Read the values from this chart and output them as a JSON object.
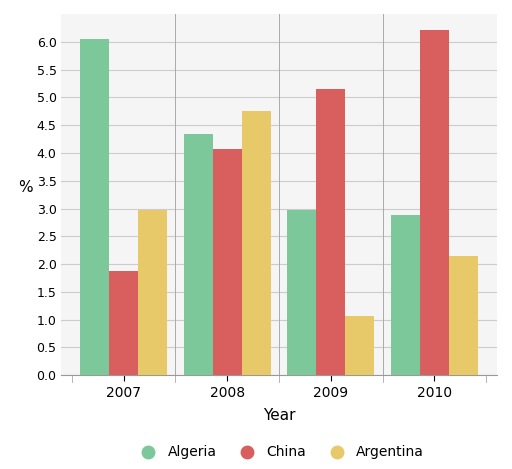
{
  "years": [
    "2007",
    "2008",
    "2009",
    "2010"
  ],
  "algeria": [
    6.05,
    4.35,
    2.97,
    2.88
  ],
  "china": [
    1.87,
    4.07,
    5.15,
    6.22
  ],
  "argentina": [
    2.97,
    4.75,
    1.07,
    2.15
  ],
  "algeria_color": "#7DC89A",
  "china_color": "#D95F5F",
  "argentina_color": "#E8C96A",
  "xlabel": "Year",
  "ylabel": "%",
  "ylim_min": 0.0,
  "ylim_max": 6.5,
  "yticks": [
    0.0,
    0.5,
    1.0,
    1.5,
    2.0,
    2.5,
    3.0,
    3.5,
    4.0,
    4.5,
    5.0,
    5.5,
    6.0
  ],
  "legend_labels": [
    "Algeria",
    "China",
    "Argentina"
  ],
  "bar_width": 0.28,
  "background_color": "#FFFFFF",
  "grid_color": "#CCCCCC",
  "axes_bg_color": "#F5F5F5"
}
